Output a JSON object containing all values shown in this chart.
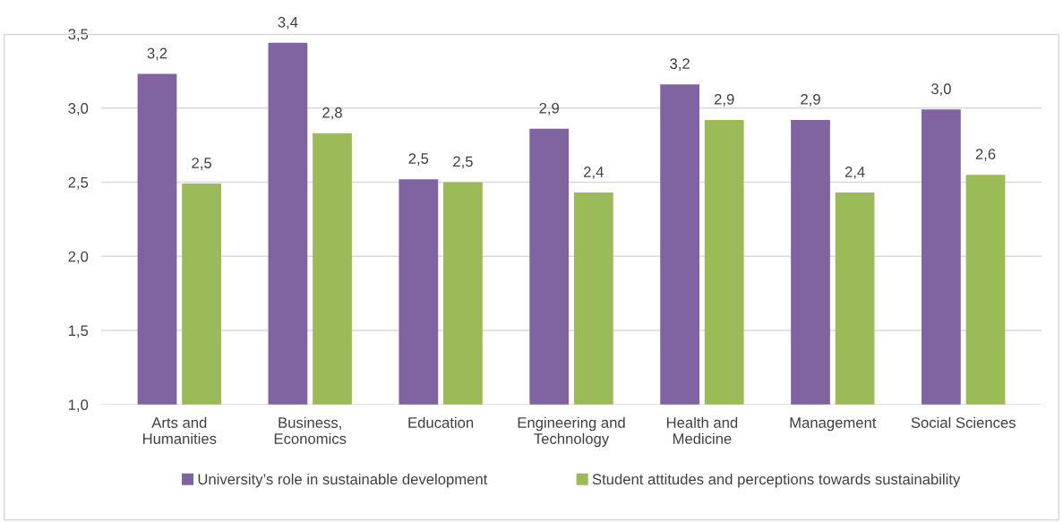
{
  "chart_data": {
    "type": "bar",
    "categories": [
      "Arts and\nHumanities",
      "Business,\nEconomics",
      "Education",
      "Engineering and\nTechnology",
      "Health and\nMedicine",
      "Management",
      "Social Sciences"
    ],
    "series": [
      {
        "name": "University’s role in sustainable development",
        "color": "#8064a2",
        "values": [
          3.23,
          3.44,
          2.52,
          2.86,
          3.16,
          2.92,
          2.99
        ],
        "value_labels": [
          "3,2",
          "3,4",
          "2,5",
          "2,9",
          "3,2",
          "2,9",
          "3,0"
        ]
      },
      {
        "name": "Student attitudes and perceptions towards sustainability",
        "color": "#9bbb59",
        "values": [
          2.49,
          2.83,
          2.5,
          2.43,
          2.92,
          2.43,
          2.55
        ],
        "value_labels": [
          "2,5",
          "2,8",
          "2,5",
          "2,4",
          "2,9",
          "2,4",
          "2,6"
        ]
      }
    ],
    "ylim": [
      1.0,
      3.5
    ],
    "yticks": [
      {
        "value": 1.0,
        "label": "1,0"
      },
      {
        "value": 1.5,
        "label": "1,5"
      },
      {
        "value": 2.0,
        "label": "2,0"
      },
      {
        "value": 2.5,
        "label": "2,5"
      },
      {
        "value": 3.0,
        "label": "3,0"
      },
      {
        "value": 3.5,
        "label": "3,5"
      }
    ],
    "grid": "y",
    "legend": "bottom"
  }
}
